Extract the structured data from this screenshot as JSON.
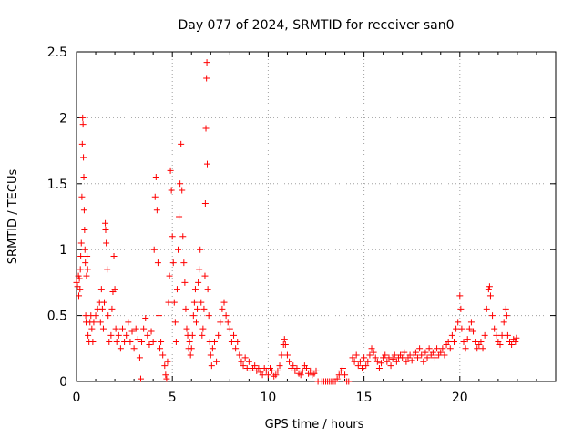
{
  "chart_data": {
    "type": "scatter",
    "title": "Day 077 of 2024, SRMTID for receiver san0",
    "xlabel": "GPS time / hours",
    "ylabel": "SRMTID / TECUs",
    "xlim": [
      0,
      25
    ],
    "ylim": [
      0,
      2.5
    ],
    "xticks": [
      0,
      5,
      10,
      15,
      20
    ],
    "xtick_labels": [
      "0",
      "5",
      "10",
      "15",
      "20"
    ],
    "yticks": [
      0,
      0.5,
      1,
      1.5,
      2,
      2.5
    ],
    "ytick_labels": [
      "0",
      "0.5",
      "1",
      "1.5",
      "2",
      "2.5"
    ],
    "grid": true,
    "marker": "+",
    "color": "#ff0000",
    "series": [
      {
        "name": "SRMTID",
        "points": [
          [
            0.0,
            0.75
          ],
          [
            0.05,
            0.72
          ],
          [
            0.1,
            0.8
          ],
          [
            0.12,
            0.65
          ],
          [
            0.15,
            0.78
          ],
          [
            0.18,
            0.7
          ],
          [
            0.2,
            0.85
          ],
          [
            0.22,
            0.95
          ],
          [
            0.25,
            1.05
          ],
          [
            0.28,
            1.4
          ],
          [
            0.3,
            1.8
          ],
          [
            0.32,
            2.0
          ],
          [
            0.34,
            1.95
          ],
          [
            0.36,
            1.7
          ],
          [
            0.38,
            1.55
          ],
          [
            0.4,
            1.3
          ],
          [
            0.42,
            1.15
          ],
          [
            0.44,
            1.0
          ],
          [
            0.46,
            0.9
          ],
          [
            0.48,
            0.5
          ],
          [
            0.5,
            0.45
          ],
          [
            0.52,
            0.8
          ],
          [
            0.55,
            0.95
          ],
          [
            0.58,
            0.85
          ],
          [
            0.6,
            0.35
          ],
          [
            0.65,
            0.3
          ],
          [
            0.7,
            0.45
          ],
          [
            0.75,
            0.5
          ],
          [
            0.8,
            0.4
          ],
          [
            0.85,
            0.3
          ],
          [
            0.9,
            0.45
          ],
          [
            1.0,
            0.5
          ],
          [
            1.1,
            0.55
          ],
          [
            1.2,
            0.6
          ],
          [
            1.25,
            0.45
          ],
          [
            1.3,
            0.7
          ],
          [
            1.35,
            0.55
          ],
          [
            1.4,
            0.4
          ],
          [
            1.45,
            0.6
          ],
          [
            1.5,
            1.2
          ],
          [
            1.52,
            1.15
          ],
          [
            1.55,
            1.05
          ],
          [
            1.6,
            0.85
          ],
          [
            1.65,
            0.5
          ],
          [
            1.7,
            0.3
          ],
          [
            1.8,
            0.35
          ],
          [
            1.85,
            0.55
          ],
          [
            1.9,
            0.68
          ],
          [
            1.95,
            0.95
          ],
          [
            2.0,
            0.7
          ],
          [
            2.05,
            0.4
          ],
          [
            2.1,
            0.3
          ],
          [
            2.2,
            0.35
          ],
          [
            2.3,
            0.25
          ],
          [
            2.4,
            0.4
          ],
          [
            2.5,
            0.3
          ],
          [
            2.6,
            0.35
          ],
          [
            2.7,
            0.45
          ],
          [
            2.8,
            0.3
          ],
          [
            2.9,
            0.38
          ],
          [
            3.0,
            0.25
          ],
          [
            3.1,
            0.4
          ],
          [
            3.2,
            0.32
          ],
          [
            3.3,
            0.18
          ],
          [
            3.35,
            0.02
          ],
          [
            3.4,
            0.3
          ],
          [
            3.5,
            0.4
          ],
          [
            3.6,
            0.48
          ],
          [
            3.7,
            0.35
          ],
          [
            3.8,
            0.28
          ],
          [
            3.9,
            0.38
          ],
          [
            4.0,
            0.3
          ],
          [
            4.05,
            1.0
          ],
          [
            4.1,
            1.4
          ],
          [
            4.15,
            1.55
          ],
          [
            4.2,
            1.3
          ],
          [
            4.25,
            0.9
          ],
          [
            4.3,
            0.5
          ],
          [
            4.35,
            0.25
          ],
          [
            4.4,
            0.3
          ],
          [
            4.5,
            0.2
          ],
          [
            4.6,
            0.12
          ],
          [
            4.65,
            0.05
          ],
          [
            4.7,
            0.02
          ],
          [
            4.75,
            0.15
          ],
          [
            4.8,
            0.6
          ],
          [
            4.85,
            0.8
          ],
          [
            4.9,
            1.6
          ],
          [
            4.95,
            1.45
          ],
          [
            5.0,
            1.1
          ],
          [
            5.05,
            0.9
          ],
          [
            5.1,
            0.6
          ],
          [
            5.15,
            0.45
          ],
          [
            5.2,
            0.3
          ],
          [
            5.25,
            0.7
          ],
          [
            5.3,
            1.0
          ],
          [
            5.35,
            1.25
          ],
          [
            5.4,
            1.5
          ],
          [
            5.45,
            1.8
          ],
          [
            5.5,
            1.45
          ],
          [
            5.55,
            1.1
          ],
          [
            5.6,
            0.9
          ],
          [
            5.65,
            0.75
          ],
          [
            5.7,
            0.55
          ],
          [
            5.75,
            0.4
          ],
          [
            5.8,
            0.35
          ],
          [
            5.85,
            0.25
          ],
          [
            5.9,
            0.3
          ],
          [
            5.95,
            0.2
          ],
          [
            6.0,
            0.25
          ],
          [
            6.05,
            0.35
          ],
          [
            6.1,
            0.5
          ],
          [
            6.15,
            0.6
          ],
          [
            6.2,
            0.7
          ],
          [
            6.25,
            0.45
          ],
          [
            6.3,
            0.55
          ],
          [
            6.35,
            0.75
          ],
          [
            6.4,
            0.85
          ],
          [
            6.45,
            1.0
          ],
          [
            6.5,
            0.6
          ],
          [
            6.55,
            0.35
          ],
          [
            6.6,
            0.4
          ],
          [
            6.65,
            0.55
          ],
          [
            6.7,
            0.8
          ],
          [
            6.72,
            1.35
          ],
          [
            6.75,
            1.92
          ],
          [
            6.78,
            2.3
          ],
          [
            6.8,
            2.42
          ],
          [
            6.82,
            1.65
          ],
          [
            6.85,
            0.7
          ],
          [
            6.9,
            0.5
          ],
          [
            6.95,
            0.3
          ],
          [
            7.0,
            0.2
          ],
          [
            7.05,
            0.12
          ],
          [
            7.1,
            0.25
          ],
          [
            7.2,
            0.3
          ],
          [
            7.3,
            0.15
          ],
          [
            7.4,
            0.35
          ],
          [
            7.5,
            0.45
          ],
          [
            7.6,
            0.55
          ],
          [
            7.7,
            0.6
          ],
          [
            7.8,
            0.5
          ],
          [
            7.9,
            0.45
          ],
          [
            8.0,
            0.4
          ],
          [
            8.1,
            0.3
          ],
          [
            8.2,
            0.35
          ],
          [
            8.3,
            0.25
          ],
          [
            8.4,
            0.3
          ],
          [
            8.5,
            0.2
          ],
          [
            8.6,
            0.15
          ],
          [
            8.7,
            0.12
          ],
          [
            8.8,
            0.18
          ],
          [
            8.9,
            0.1
          ],
          [
            9.0,
            0.15
          ],
          [
            9.1,
            0.08
          ],
          [
            9.2,
            0.1
          ],
          [
            9.3,
            0.12
          ],
          [
            9.4,
            0.08
          ],
          [
            9.5,
            0.1
          ],
          [
            9.6,
            0.07
          ],
          [
            9.7,
            0.05
          ],
          [
            9.8,
            0.1
          ],
          [
            9.9,
            0.08
          ],
          [
            10.0,
            0.05
          ],
          [
            10.1,
            0.1
          ],
          [
            10.2,
            0.08
          ],
          [
            10.3,
            0.04
          ],
          [
            10.4,
            0.05
          ],
          [
            10.5,
            0.08
          ],
          [
            10.6,
            0.12
          ],
          [
            10.7,
            0.2
          ],
          [
            10.8,
            0.28
          ],
          [
            10.85,
            0.32
          ],
          [
            10.9,
            0.28
          ],
          [
            11.0,
            0.2
          ],
          [
            11.1,
            0.15
          ],
          [
            11.2,
            0.1
          ],
          [
            11.3,
            0.12
          ],
          [
            11.4,
            0.08
          ],
          [
            11.5,
            0.1
          ],
          [
            11.6,
            0.06
          ],
          [
            11.7,
            0.05
          ],
          [
            11.8,
            0.08
          ],
          [
            11.9,
            0.12
          ],
          [
            12.0,
            0.1
          ],
          [
            12.1,
            0.06
          ],
          [
            12.2,
            0.08
          ],
          [
            12.3,
            0.05
          ],
          [
            12.4,
            0.06
          ],
          [
            12.5,
            0.08
          ],
          [
            12.6,
            0.0
          ],
          [
            12.8,
            0.0
          ],
          [
            12.9,
            0.0
          ],
          [
            13.0,
            0.0
          ],
          [
            13.1,
            0.0
          ],
          [
            13.2,
            0.0
          ],
          [
            13.3,
            0.0
          ],
          [
            13.4,
            0.0
          ],
          [
            13.5,
            0.0
          ],
          [
            13.6,
            0.02
          ],
          [
            13.7,
            0.05
          ],
          [
            13.8,
            0.08
          ],
          [
            13.9,
            0.1
          ],
          [
            14.0,
            0.05
          ],
          [
            14.1,
            0.0
          ],
          [
            14.2,
            0.0
          ],
          [
            14.4,
            0.18
          ],
          [
            14.5,
            0.15
          ],
          [
            14.6,
            0.2
          ],
          [
            14.7,
            0.12
          ],
          [
            14.8,
            0.15
          ],
          [
            14.9,
            0.1
          ],
          [
            15.0,
            0.18
          ],
          [
            15.1,
            0.12
          ],
          [
            15.2,
            0.15
          ],
          [
            15.3,
            0.2
          ],
          [
            15.4,
            0.25
          ],
          [
            15.5,
            0.22
          ],
          [
            15.6,
            0.18
          ],
          [
            15.7,
            0.15
          ],
          [
            15.8,
            0.1
          ],
          [
            15.9,
            0.14
          ],
          [
            16.0,
            0.18
          ],
          [
            16.1,
            0.2
          ],
          [
            16.2,
            0.15
          ],
          [
            16.3,
            0.18
          ],
          [
            16.4,
            0.12
          ],
          [
            16.5,
            0.17
          ],
          [
            16.6,
            0.2
          ],
          [
            16.7,
            0.15
          ],
          [
            16.8,
            0.18
          ],
          [
            16.9,
            0.2
          ],
          [
            17.0,
            0.18
          ],
          [
            17.1,
            0.22
          ],
          [
            17.2,
            0.15
          ],
          [
            17.3,
            0.18
          ],
          [
            17.4,
            0.2
          ],
          [
            17.5,
            0.16
          ],
          [
            17.6,
            0.2
          ],
          [
            17.7,
            0.22
          ],
          [
            17.8,
            0.18
          ],
          [
            17.9,
            0.25
          ],
          [
            18.0,
            0.2
          ],
          [
            18.1,
            0.15
          ],
          [
            18.2,
            0.22
          ],
          [
            18.3,
            0.18
          ],
          [
            18.4,
            0.25
          ],
          [
            18.5,
            0.2
          ],
          [
            18.6,
            0.22
          ],
          [
            18.7,
            0.18
          ],
          [
            18.8,
            0.25
          ],
          [
            18.9,
            0.2
          ],
          [
            19.0,
            0.22
          ],
          [
            19.1,
            0.25
          ],
          [
            19.2,
            0.2
          ],
          [
            19.3,
            0.28
          ],
          [
            19.4,
            0.3
          ],
          [
            19.5,
            0.25
          ],
          [
            19.6,
            0.35
          ],
          [
            19.7,
            0.3
          ],
          [
            19.8,
            0.4
          ],
          [
            19.9,
            0.45
          ],
          [
            20.0,
            0.65
          ],
          [
            20.05,
            0.55
          ],
          [
            20.1,
            0.4
          ],
          [
            20.2,
            0.3
          ],
          [
            20.3,
            0.25
          ],
          [
            20.4,
            0.32
          ],
          [
            20.5,
            0.4
          ],
          [
            20.6,
            0.45
          ],
          [
            20.7,
            0.38
          ],
          [
            20.8,
            0.3
          ],
          [
            20.9,
            0.25
          ],
          [
            21.0,
            0.28
          ],
          [
            21.1,
            0.3
          ],
          [
            21.2,
            0.25
          ],
          [
            21.3,
            0.35
          ],
          [
            21.4,
            0.55
          ],
          [
            21.5,
            0.7
          ],
          [
            21.55,
            0.72
          ],
          [
            21.6,
            0.65
          ],
          [
            21.7,
            0.5
          ],
          [
            21.8,
            0.4
          ],
          [
            21.9,
            0.35
          ],
          [
            22.0,
            0.3
          ],
          [
            22.1,
            0.28
          ],
          [
            22.2,
            0.35
          ],
          [
            22.3,
            0.45
          ],
          [
            22.4,
            0.55
          ],
          [
            22.45,
            0.5
          ],
          [
            22.5,
            0.35
          ],
          [
            22.6,
            0.3
          ],
          [
            22.7,
            0.28
          ],
          [
            22.8,
            0.32
          ],
          [
            22.9,
            0.3
          ],
          [
            22.95,
            0.33
          ]
        ]
      }
    ]
  }
}
